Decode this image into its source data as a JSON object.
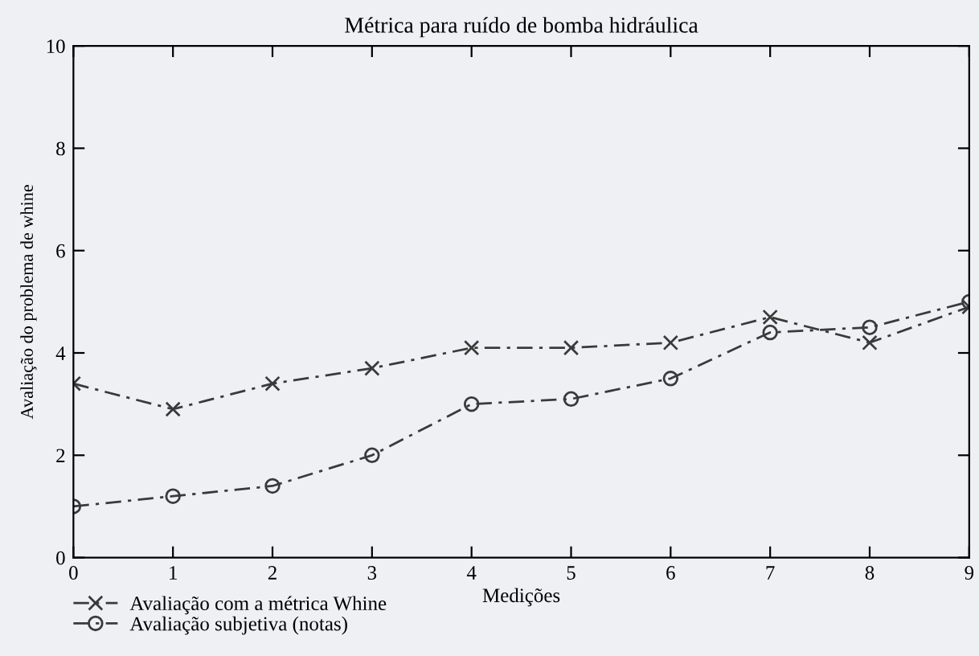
{
  "chart_data": {
    "type": "line",
    "title": "Métrica para ruído de bomba hidráulica",
    "xlabel": "Medições",
    "ylabel": "Avaliação do problema de whine",
    "x": [
      0,
      1,
      2,
      3,
      4,
      5,
      6,
      7,
      8,
      9
    ],
    "series": [
      {
        "name": "Avaliação com a métrica Whine",
        "color": "#3a3a3a",
        "marker": "cross",
        "values": [
          3.4,
          2.9,
          3.4,
          3.7,
          4.1,
          4.1,
          4.2,
          4.7,
          4.2,
          4.9
        ]
      },
      {
        "name": "Avaliação subjetiva (notas)",
        "color": "#3a3a3a",
        "marker": "circle",
        "values": [
          1.0,
          1.2,
          1.4,
          2.0,
          3.0,
          3.1,
          3.5,
          4.4,
          4.5,
          5.0
        ]
      }
    ],
    "line_style": "dashed",
    "xlim": [
      0,
      9
    ],
    "ylim": [
      0,
      10
    ],
    "xticks": [
      0,
      1,
      2,
      3,
      4,
      5,
      6,
      7,
      8,
      9
    ],
    "yticks": [
      0,
      2,
      4,
      6,
      8,
      10
    ],
    "legend": "bottom left",
    "grid": false
  }
}
